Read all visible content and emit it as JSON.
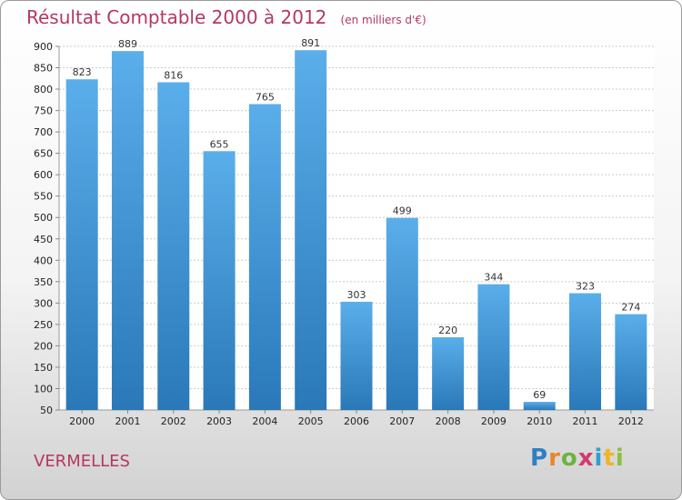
{
  "header": {
    "title": "Résultat Comptable 2000 à 2012",
    "unit": "(en milliers d'€)"
  },
  "footer": {
    "commune": "VERMELLES",
    "brand": "Proxiti"
  },
  "colors": {
    "title": "#b5385e",
    "bar_top": "#5aaeea",
    "bar_bottom": "#2a78b8",
    "grid": "#cccccc"
  },
  "chart_data": {
    "type": "bar",
    "title": "Résultat Comptable 2000 à 2012",
    "subtitle": "(en milliers d'€)",
    "xlabel": "",
    "ylabel": "",
    "categories": [
      "2000",
      "2001",
      "2002",
      "2003",
      "2004",
      "2005",
      "2006",
      "2007",
      "2008",
      "2009",
      "2010",
      "2011",
      "2012"
    ],
    "values": [
      823,
      889,
      816,
      655,
      765,
      891,
      303,
      499,
      220,
      344,
      69,
      323,
      274
    ],
    "ylim": [
      50,
      900
    ],
    "yticks": [
      50,
      100,
      150,
      200,
      250,
      300,
      350,
      400,
      450,
      500,
      550,
      600,
      650,
      700,
      750,
      800,
      850,
      900
    ],
    "grid": true,
    "legend": "none"
  }
}
